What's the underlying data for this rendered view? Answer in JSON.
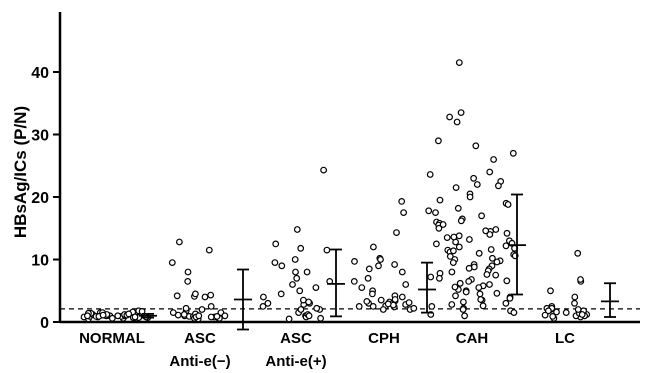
{
  "chart_data": {
    "type": "scatter",
    "title": "",
    "ylabel": "HBsAg/ICs (P/N)",
    "xlabel": "",
    "ylim": [
      0,
      50
    ],
    "yticks": [
      0,
      10,
      20,
      30,
      40
    ],
    "y_tick_labels": [
      "0",
      "10",
      "20",
      "30",
      "40"
    ],
    "cutoff_line": {
      "y": 2.1,
      "style": "dashed"
    },
    "categories": [
      {
        "label": "NORMAL",
        "sublabel": ""
      },
      {
        "label": "ASC",
        "sublabel": "Anti-e(−)"
      },
      {
        "label": "ASC",
        "sublabel": "Anti-e(+)"
      },
      {
        "label": "CPH",
        "sublabel": ""
      },
      {
        "label": "CAH",
        "sublabel": ""
      },
      {
        "label": "LC",
        "sublabel": ""
      }
    ],
    "series": [
      {
        "category": "NORMAL",
        "mean": 1.0,
        "sd_low": 0.7,
        "sd_high": 1.3,
        "values": [
          0.6,
          0.8,
          0.9,
          0.7,
          1.0,
          1.2,
          0.5,
          0.9,
          1.1,
          0.8,
          1.3,
          1.5,
          0.7,
          0.9,
          1.0,
          1.2,
          1.4,
          1.6,
          1.8,
          0.6,
          0.8,
          1.0,
          1.3,
          1.1,
          0.9,
          1.5,
          1.7,
          0.7,
          1.0,
          1.2,
          0.8,
          1.4,
          1.0,
          0.9,
          1.1,
          0.6,
          0.8
        ]
      },
      {
        "category": "ASC Anti-e(−)",
        "mean": 3.6,
        "sd_low": -1.2,
        "sd_high": 8.4,
        "values": [
          0.5,
          0.8,
          1.0,
          1.2,
          1.5,
          0.7,
          0.9,
          2.0,
          0.6,
          0.8,
          1.1,
          4.0,
          4.2,
          4.3,
          4.1,
          2.5,
          1.8,
          0.9,
          0.6,
          1.3,
          1.0,
          0.8,
          1.5,
          2.2,
          12.8,
          11.5,
          9.5,
          8.0,
          6.5,
          4.5,
          1.2,
          0.9,
          1.0
        ]
      },
      {
        "category": "ASC Anti-e(+)",
        "mean": 6.1,
        "sd_low": 0.9,
        "sd_high": 11.6,
        "values": [
          1.5,
          2.0,
          2.8,
          3.0,
          4.0,
          5.0,
          6.0,
          7.0,
          8.0,
          9.0,
          10.0,
          11.5,
          12.5,
          14.8,
          24.3,
          3.5,
          2.5,
          1.0,
          0.8,
          0.5,
          2.2,
          3.2,
          4.5,
          5.5,
          6.5,
          8.0,
          9.5,
          11.8,
          1.2,
          0.6,
          2.0,
          1.0,
          3.0
        ]
      },
      {
        "category": "CPH",
        "mean": 5.2,
        "sd_low": 1.5,
        "sd_high": 9.5,
        "values": [
          2.0,
          2.5,
          3.0,
          3.5,
          4.0,
          5.0,
          6.0,
          7.0,
          8.0,
          9.0,
          10.2,
          9.7,
          12.0,
          14.3,
          17.5,
          19.3,
          2.2,
          3.2,
          2.8,
          4.5,
          6.5,
          8.5,
          2.6,
          3.0,
          3.4,
          2.4,
          2.0,
          2.7,
          3.1,
          4.2,
          5.5,
          2.9,
          3.3,
          9.2,
          10.0,
          2.5,
          3.6
        ]
      },
      {
        "category": "CAH",
        "mean": 12.3,
        "sd_low": 4.4,
        "sd_high": 20.4,
        "values": [
          41.5,
          33.5,
          32.8,
          32.0,
          29.0,
          28.2,
          27.0,
          24.0,
          23.0,
          22.5,
          21.8,
          21.5,
          20.5,
          20.0,
          19.5,
          19.0,
          18.2,
          17.8,
          17.0,
          16.5,
          16.0,
          15.8,
          15.5,
          15.0,
          14.8,
          14.5,
          14.0,
          13.8,
          13.5,
          13.2,
          13.0,
          12.8,
          12.5,
          12.2,
          12.0,
          11.8,
          11.5,
          11.2,
          11.0,
          10.8,
          10.5,
          10.2,
          10.0,
          9.8,
          9.5,
          9.2,
          9.0,
          8.8,
          8.5,
          8.2,
          8.0,
          7.8,
          7.5,
          7.2,
          7.0,
          6.8,
          6.5,
          6.2,
          6.0,
          5.8,
          5.5,
          5.2,
          5.0,
          4.8,
          4.5,
          4.2,
          4.0,
          3.8,
          3.5,
          3.2,
          3.0,
          2.8,
          2.5,
          2.2,
          2.0,
          1.8,
          1.5,
          1.2,
          1.0,
          16.2,
          15.6,
          14.2,
          13.6,
          12.6,
          11.6,
          10.6,
          9.6,
          8.6,
          7.6,
          6.6,
          5.6,
          4.6,
          3.6,
          2.6,
          22.0,
          17.5,
          18.8,
          26.0,
          23.6,
          14.6,
          11.4
        ]
      },
      {
        "category": "LC",
        "mean": 3.3,
        "sd_low": 0.8,
        "sd_high": 6.2,
        "values": [
          0.8,
          1.0,
          1.2,
          1.5,
          1.8,
          2.0,
          2.2,
          2.5,
          1.0,
          1.4,
          0.6,
          1.6,
          1.2,
          2.0,
          3.0,
          4.0,
          5.0,
          6.5,
          6.8,
          11.0,
          2.2,
          1.8,
          1.1,
          0.9
        ]
      }
    ],
    "grid": false,
    "legend": "none"
  }
}
